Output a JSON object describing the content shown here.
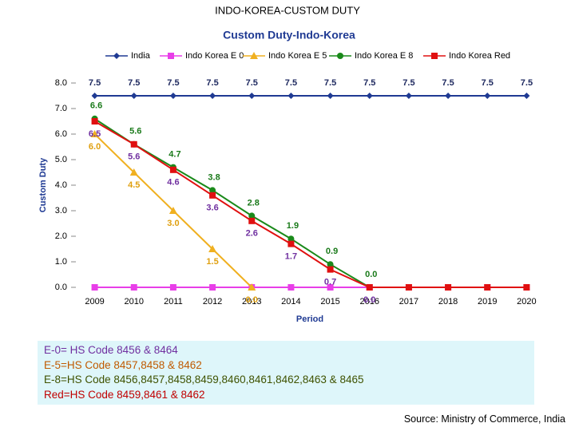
{
  "page_title": "INDO-KOREA-CUSTOM DUTY",
  "chart_data": {
    "type": "line",
    "title": "Custom Duty-Indo-Korea",
    "x_label": "Period",
    "y_label": "Custom Duty",
    "categories": [
      "2009",
      "2010",
      "2011",
      "2012",
      "2013",
      "2014",
      "2015",
      "2016",
      "2017",
      "2018",
      "2019",
      "2020"
    ],
    "ylim": [
      0,
      8
    ],
    "yticks": [
      {
        "value": 0,
        "label": "0.0"
      },
      {
        "value": 1,
        "label": "1.0"
      },
      {
        "value": 2,
        "label": "2.0"
      },
      {
        "value": 3,
        "label": "3.0"
      },
      {
        "value": 4,
        "label": "4.0"
      },
      {
        "value": 5,
        "label": "5.0"
      },
      {
        "value": 6,
        "label": "6.0"
      },
      {
        "value": 7,
        "label": "7.0"
      },
      {
        "value": 8,
        "label": "8.0"
      }
    ],
    "legend": "top",
    "series": [
      {
        "name": "India",
        "color": "#1f3a93",
        "marker": "diamond",
        "label_color": "#1f2a60",
        "values": [
          7.5,
          7.5,
          7.5,
          7.5,
          7.5,
          7.5,
          7.5,
          7.5,
          7.5,
          7.5,
          7.5,
          7.5
        ],
        "value_labels": [
          "7.5",
          "7.5",
          "7.5",
          "7.5",
          "7.5",
          "7.5",
          "7.5",
          "7.5",
          "7.5",
          "7.5",
          "7.5",
          "7.5"
        ]
      },
      {
        "name": "Indo Korea E 0",
        "color": "#e83ee8",
        "marker": "square",
        "values": [
          0,
          0,
          0,
          0,
          0,
          0,
          0,
          0,
          0,
          0,
          0,
          0
        ]
      },
      {
        "name": "Indo Korea E 5",
        "color": "#f0b020",
        "marker": "triangle",
        "label_color": "#e0a010",
        "values": [
          6.0,
          4.5,
          3.0,
          1.5,
          0.0,
          null,
          null,
          null,
          null,
          null,
          null,
          null
        ],
        "value_labels": [
          "6.0",
          "4.5",
          "3.0",
          "1.5",
          "0.0",
          null,
          null,
          null,
          null,
          null,
          null,
          null
        ]
      },
      {
        "name": "Indo Korea E 8",
        "color": "#1a8a1a",
        "marker": "circle",
        "label_color": "#1a7a1a",
        "values": [
          6.6,
          5.6,
          4.7,
          3.8,
          2.8,
          1.9,
          0.9,
          0.0,
          null,
          null,
          null,
          null
        ],
        "value_labels": [
          "6.6",
          "5.6",
          "4.7",
          "3.8",
          "2.8",
          "1.9",
          "0.9",
          "0.0",
          null,
          null,
          null,
          null
        ]
      },
      {
        "name": "Indo Korea Red",
        "color": "#e01010",
        "marker": "square",
        "label_color": "#7030a0",
        "values": [
          6.5,
          5.6,
          4.6,
          3.6,
          2.6,
          1.7,
          0.7,
          0.0,
          0,
          0,
          0,
          0
        ],
        "value_labels": [
          "6.5",
          "5.6",
          "4.6",
          "3.6",
          "2.6",
          "1.7",
          "0.7",
          "0.0",
          null,
          null,
          null,
          null
        ]
      }
    ]
  },
  "notes": [
    "E-0= HS Code 8456 & 8464",
    "E-5=HS Code 8457,8458 & 8462",
    "E-8=HS Code 8456,8457,8458,8459,8460,8461,8462,8463 & 8465",
    "Red=HS Code 8459,8461 & 8462"
  ],
  "source": "Source: Ministry of Commerce, India"
}
